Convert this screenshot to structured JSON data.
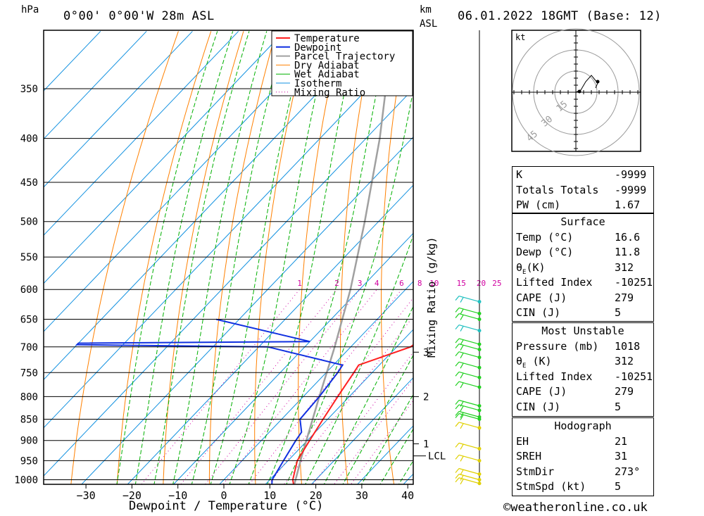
{
  "header": {
    "pressure_unit": "hPa",
    "location": "0°00' 0°00'W 28m ASL",
    "km_label": "km",
    "asl_label": "ASL",
    "datetime": "06.01.2022 18GMT (Base: 12)"
  },
  "chart_data": {
    "type": "skew-t",
    "xlabel": "Dewpoint / Temperature (°C)",
    "ylabel_right": "Mixing Ratio (g/kg)",
    "temperature_ticks": [
      -30,
      -20,
      -10,
      0,
      10,
      20,
      30,
      40
    ],
    "pressure_ticks": [
      350,
      400,
      450,
      500,
      550,
      600,
      650,
      700,
      750,
      800,
      850,
      900,
      950,
      1000
    ],
    "mixing_ratio_labels": [
      "1",
      "2",
      "3",
      "4",
      "6",
      "8",
      "10",
      "15",
      "20",
      "25"
    ],
    "km_ticks": [
      {
        "label": "3",
        "p": 710
      },
      {
        "label": "2",
        "p": 800
      },
      {
        "label": "1",
        "p": 908
      }
    ],
    "lcl_label": "LCL",
    "lcl_pressure": 938,
    "legend": [
      "Temperature",
      "Dewpoint",
      "Parcel Trajectory",
      "Dry Adiabat",
      "Wet Adiabat",
      "Isotherm",
      "Mixing Ratio"
    ],
    "colors": {
      "temperature": "#ff2020",
      "dewpoint": "#1030e0",
      "parcel": "#a0a0a0",
      "dry": "#ff8000",
      "wet": "#00b000",
      "isotherm": "#1090e0",
      "mixing": "#d000a0",
      "wind_green": "#20d020",
      "wind_yellow": "#e0d000",
      "wind_cyan": "#20c0c0"
    },
    "temperature_profile": [
      [
        1018,
        16.6
      ],
      [
        1000,
        15.0
      ],
      [
        950,
        12.0
      ],
      [
        900,
        10.5
      ],
      [
        850,
        9.0
      ],
      [
        800,
        7.5
      ],
      [
        750,
        6.0
      ],
      [
        735,
        5.5
      ],
      [
        700,
        13.0
      ],
      [
        690,
        13.5
      ],
      [
        650,
        13.0
      ]
    ],
    "dewpoint_profile": [
      [
        1018,
        11.8
      ],
      [
        1000,
        10.5
      ],
      [
        950,
        9.0
      ],
      [
        900,
        7.5
      ],
      [
        880,
        7.0
      ],
      [
        850,
        4.0
      ],
      [
        800,
        3.5
      ],
      [
        750,
        2.5
      ],
      [
        735,
        2.0
      ],
      [
        700,
        -18.0
      ],
      [
        696,
        -60
      ],
      [
        693,
        -60
      ],
      [
        690,
        -10
      ],
      [
        650,
        -35
      ]
    ],
    "parcel_profile": [
      [
        1018,
        16.6
      ],
      [
        938,
        12.0
      ],
      [
        800,
        3.5
      ],
      [
        700,
        -3.5
      ],
      [
        600,
        -12
      ],
      [
        500,
        -23
      ],
      [
        400,
        -37
      ],
      [
        350,
        -46
      ],
      [
        300,
        -55
      ]
    ]
  },
  "hodograph": {
    "unit": "kt",
    "ring_labels": [
      "15",
      "30",
      "45"
    ]
  },
  "indices": [
    {
      "key": "K",
      "value": "-9999"
    },
    {
      "key": "Totals Totals",
      "value": "-9999"
    },
    {
      "key": "PW (cm)",
      "value": "1.67"
    }
  ],
  "surface": {
    "title": "Surface",
    "rows": [
      {
        "key": "Temp (°C)",
        "value": "16.6"
      },
      {
        "key": "Dewp (°C)",
        "value": "11.8"
      },
      {
        "key": "θE(K)",
        "value": "312"
      },
      {
        "key": "Lifted Index",
        "value": "-10251"
      },
      {
        "key": "CAPE (J)",
        "value": "279"
      },
      {
        "key": "CIN (J)",
        "value": "5"
      }
    ]
  },
  "most_unstable": {
    "title": "Most Unstable",
    "rows": [
      {
        "key": "Pressure (mb)",
        "value": "1018"
      },
      {
        "key": "θE (K)",
        "value": "312"
      },
      {
        "key": "Lifted Index",
        "value": "-10251"
      },
      {
        "key": "CAPE (J)",
        "value": "279"
      },
      {
        "key": "CIN (J)",
        "value": "5"
      }
    ]
  },
  "hodograph_table": {
    "title": "Hodograph",
    "rows": [
      {
        "key": "EH",
        "value": "21"
      },
      {
        "key": "SREH",
        "value": "31"
      },
      {
        "key": "StmDir",
        "value": "273°"
      },
      {
        "key": "StmSpd (kt)",
        "value": "5"
      }
    ]
  },
  "footer": {
    "copyright": "©weatheronline.co.uk"
  }
}
